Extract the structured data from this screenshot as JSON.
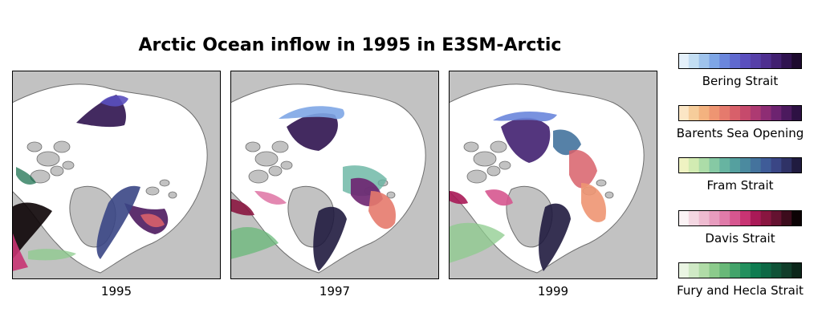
{
  "chart_data": {
    "type": "heatmap",
    "title": "Arctic Ocean inflow in 1995 in E3SM-Arctic",
    "panels": [
      {
        "label": "1995"
      },
      {
        "label": "1997"
      },
      {
        "label": "1999"
      }
    ],
    "colorbars": [
      {
        "name": "Bering Strait",
        "colors": [
          "#e4f0fa",
          "#c3def3",
          "#9fc3ec",
          "#7ea6e6",
          "#6a86dc",
          "#5f69cf",
          "#5a4fbe",
          "#5640a8",
          "#4e2f8f",
          "#412070",
          "#2f134f",
          "#1d0a2e"
        ]
      },
      {
        "name": "Barents Sea Opening",
        "colors": [
          "#fbe6c5",
          "#f6cd9b",
          "#f3b27f",
          "#ee9572",
          "#e57a6d",
          "#d8606a",
          "#c64a6c",
          "#ad3a72",
          "#8e2d74",
          "#6d2370",
          "#4c1a5e",
          "#2d1143"
        ]
      },
      {
        "name": "Fram Strait",
        "colors": [
          "#eff3c2",
          "#d2ebb2",
          "#acdca8",
          "#86c9a4",
          "#67b4a1",
          "#55a09f",
          "#4b8a9f",
          "#44739d",
          "#3f5c98",
          "#3a4685",
          "#2f3266",
          "#201b3f"
        ]
      },
      {
        "name": "Davis Strait",
        "colors": [
          "#fbf3f5",
          "#f4d7e2",
          "#eebbd0",
          "#e79cbe",
          "#e07ba9",
          "#d6568f",
          "#c83473",
          "#a91a57",
          "#891640",
          "#641230",
          "#3c0c1c",
          "#0c0305"
        ]
      },
      {
        "name": "Fury and Hecla Strait",
        "colors": [
          "#eaf5e3",
          "#cfe9c5",
          "#b0dca7",
          "#8ccb8c",
          "#68b878",
          "#43a36a",
          "#23905e",
          "#0f7c51",
          "#0d6845",
          "#0f5237",
          "#113d2a",
          "#0c261a"
        ]
      }
    ]
  }
}
